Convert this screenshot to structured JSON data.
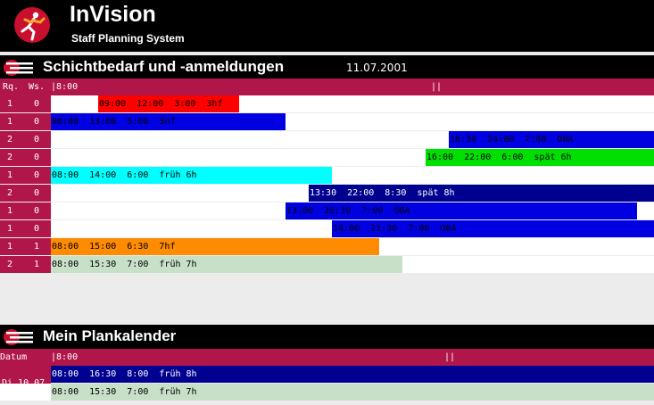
{
  "app": {
    "name": "InVision",
    "subtitle": "Staff Planning System"
  },
  "shifts_section": {
    "title": "Schichtbedarf und -anmeldungen",
    "date": "11.07.2001",
    "columns": {
      "rq": "Rq.",
      "ws": "Ws.",
      "time_start": "|8:00",
      "time_marker": "||"
    },
    "rows": [
      {
        "rq": "1",
        "ws": "0",
        "label": "09:00  12:00  3:00  3hf",
        "color": "#ff0000",
        "text_color": "#000000"
      },
      {
        "rq": "1",
        "ws": "0",
        "label": "08:00  13:00  5:00  5hf",
        "color": "#0000e0",
        "text_color": "#000000"
      },
      {
        "rq": "2",
        "ws": "0",
        "label": "16:30  24:00  7:00  OBA",
        "color": "#0000e0",
        "text_color": "#000000"
      },
      {
        "rq": "2",
        "ws": "0",
        "label": "16:00  22:00  6:00  spät 6h",
        "color": "#00e000",
        "text_color": "#000000"
      },
      {
        "rq": "1",
        "ws": "0",
        "label": "08:00  14:00  6:00  früh 6h",
        "color": "#00ffff",
        "text_color": "#000000"
      },
      {
        "rq": "2",
        "ws": "0",
        "label": "13:30  22:00  8:30  spät 8h",
        "color": "#000090",
        "text_color": "#ffffff"
      },
      {
        "rq": "1",
        "ws": "0",
        "label": "13:00  20:30  7:00  OBA",
        "color": "#0000e0",
        "text_color": "#000000"
      },
      {
        "rq": "1",
        "ws": "0",
        "label": "14:00  21:30  7:00  OBA",
        "color": "#0000e0",
        "text_color": "#000000"
      },
      {
        "rq": "1",
        "ws": "1",
        "label": "08:00  15:00  6:30  7hf",
        "color": "#ff8c00",
        "text_color": "#000000"
      },
      {
        "rq": "2",
        "ws": "1",
        "label": "08:00  15:30  7:00  früh 7h",
        "color": "#c8e0c8",
        "text_color": "#000000"
      }
    ]
  },
  "calendar_section": {
    "title": "Mein Plankalender",
    "columns": {
      "datum": "Datum",
      "time_start": "|8:00",
      "time_marker": "||"
    },
    "day": "Di 10.07",
    "rows": [
      {
        "label": "08:00  16:30  8:00  früh 8h",
        "color": "#000090",
        "text_color": "#ffffff"
      },
      {
        "label": "08:00  15:30  7:00  früh 7h",
        "color": "#c8e0c8",
        "text_color": "#000000"
      }
    ]
  }
}
